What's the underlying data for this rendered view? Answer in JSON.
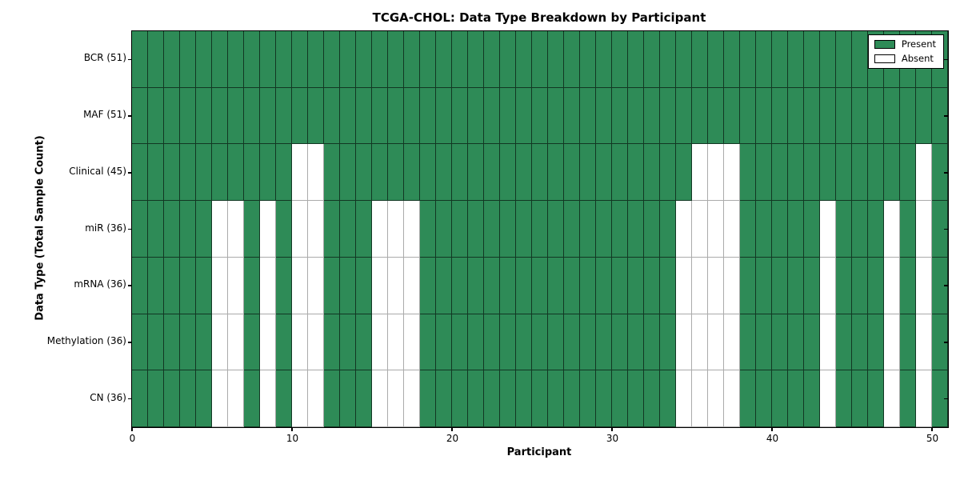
{
  "chart_data": {
    "type": "heatmap",
    "title": "TCGA-CHOL: Data Type Breakdown by Participant",
    "xlabel": "Participant",
    "ylabel": "Data Type (Total Sample Count)",
    "x_range": [
      0,
      51
    ],
    "n_participants": 51,
    "x_ticks": [
      0,
      10,
      20,
      30,
      40,
      50
    ],
    "grid": true,
    "legend_position": "upper right",
    "colors": {
      "present": "#2E8B57",
      "absent": "#FFFFFF",
      "present_edge": "rgba(0,0,0,0.60)",
      "absent_edge": "#ababab"
    },
    "legend": [
      {
        "label": "Present",
        "color": "#2E8B57"
      },
      {
        "label": "Absent",
        "color": "#FFFFFF"
      }
    ],
    "rows": [
      {
        "label": "BCR (51)",
        "total": 51,
        "absent_participants": []
      },
      {
        "label": "MAF (51)",
        "total": 51,
        "absent_participants": []
      },
      {
        "label": "Clinical (45)",
        "total": 45,
        "absent_participants": [
          10,
          11,
          35,
          36,
          37,
          49
        ]
      },
      {
        "label": "miR (36)",
        "total": 36,
        "absent_participants": [
          5,
          6,
          8,
          10,
          11,
          15,
          16,
          17,
          34,
          35,
          36,
          37,
          43,
          47,
          49
        ]
      },
      {
        "label": "mRNA (36)",
        "total": 36,
        "absent_participants": [
          5,
          6,
          8,
          10,
          11,
          15,
          16,
          17,
          34,
          35,
          36,
          37,
          43,
          47,
          49
        ]
      },
      {
        "label": "Methylation (36)",
        "total": 36,
        "absent_participants": [
          5,
          6,
          8,
          10,
          11,
          15,
          16,
          17,
          34,
          35,
          36,
          37,
          43,
          47,
          49
        ]
      },
      {
        "label": "CN (36)",
        "total": 36,
        "absent_participants": [
          5,
          6,
          8,
          10,
          11,
          15,
          16,
          17,
          34,
          35,
          36,
          37,
          43,
          47,
          49
        ]
      }
    ]
  }
}
